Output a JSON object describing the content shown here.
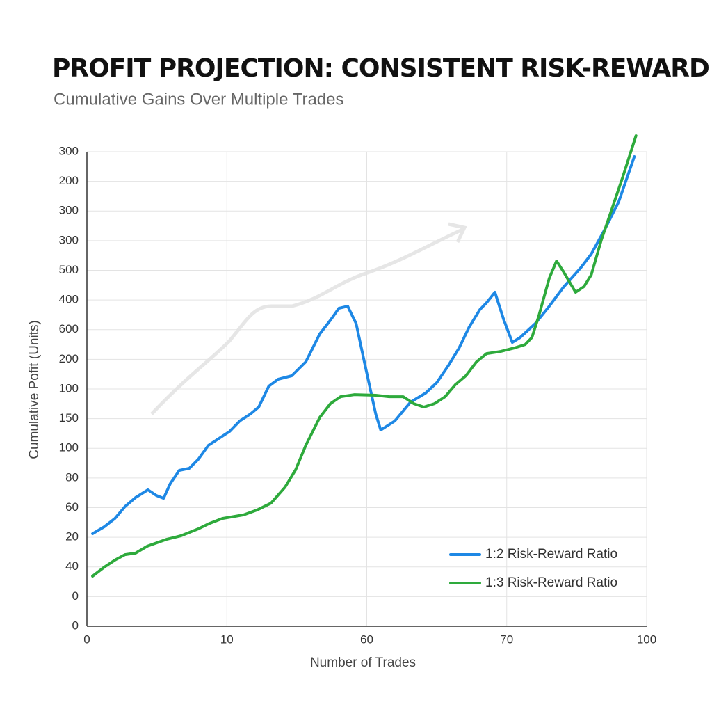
{
  "chart_data": {
    "type": "line",
    "title": "PROFIT PROJECTION: CONSISTENT RISK-REWARD",
    "subtitle": "Cumulative Gains Over Multiple Trades",
    "x_label": "Number of Trades",
    "y_label": "Cumulative Pofit (Units)",
    "xlim": [
      0,
      100
    ],
    "xticks": [
      0,
      {
        "value": 25,
        "label": "10"
      },
      {
        "value": 50,
        "label": "60"
      },
      {
        "value": 75,
        "label": "70"
      },
      100
    ],
    "ylim": [
      0,
      320
    ],
    "yticks": [
      0,
      {
        "value": 20,
        "label": "0"
      },
      40,
      {
        "value": 60,
        "label": "20"
      },
      {
        "value": 80,
        "label": "60"
      },
      {
        "value": 100,
        "label": "80"
      },
      {
        "value": 120,
        "label": "100"
      },
      {
        "value": 140,
        "label": "150"
      },
      {
        "value": 160,
        "label": "100"
      },
      {
        "value": 180,
        "label": "200"
      },
      {
        "value": 200,
        "label": "600"
      },
      {
        "value": 220,
        "label": "400"
      },
      {
        "value": 240,
        "label": "500"
      },
      {
        "value": 260,
        "label": "300"
      },
      {
        "value": 280,
        "label": "300"
      },
      {
        "value": 300,
        "label": "200"
      },
      {
        "value": 320,
        "label": "300"
      }
    ],
    "grid": true,
    "legend": "lower right",
    "series": [
      {
        "name": "1:2 Risk-Reward Ratio",
        "color": "#1e88e5",
        "x": [
          1.0,
          3.1,
          5.0,
          6.8,
          8.7,
          10.9,
          12.4,
          13.7,
          14.9,
          16.5,
          18.3,
          19.9,
          21.7,
          23.6,
          25.5,
          27.3,
          29.2,
          30.7,
          32.5,
          34.2,
          36.6,
          39.1,
          41.6,
          43.5,
          45.0,
          46.6,
          48.1,
          49.7,
          51.6,
          52.5,
          55.0,
          57.8,
          60.5,
          62.5,
          64.6,
          66.5,
          68.3,
          70.2,
          71.4,
          72.9,
          74.5,
          76.0,
          77.4,
          80.1,
          82.6,
          85.1,
          88.2,
          90.1,
          92.5,
          95.0,
          97.8
        ],
        "values": [
          62.4,
          67.1,
          72.7,
          80.7,
          86.8,
          92.0,
          88.2,
          86.3,
          96.2,
          105.1,
          106.5,
          112.6,
          122.0,
          126.7,
          131.4,
          138.4,
          143.1,
          147.8,
          161.9,
          166.6,
          168.9,
          178.3,
          197.1,
          206.4,
          214.4,
          215.8,
          204.1,
          175.9,
          143.1,
          132.3,
          138.4,
          151.1,
          157.2,
          164.2,
          175.9,
          187.7,
          201.8,
          213.5,
          218.2,
          225.2,
          206.4,
          191.4,
          194.7,
          204.1,
          215.8,
          228.5,
          241.6,
          251.0,
          267.4,
          286.2,
          316.7
        ]
      },
      {
        "name": "1:3 Risk-Reward Ratio",
        "color": "#2eaa3c",
        "x": [
          1.0,
          3.1,
          5.0,
          6.8,
          8.7,
          10.8,
          14.3,
          16.8,
          19.9,
          21.7,
          24.2,
          28.0,
          30.4,
          32.9,
          35.4,
          37.3,
          39.1,
          41.6,
          43.5,
          45.3,
          47.8,
          51.6,
          54.0,
          56.5,
          58.4,
          60.2,
          62.1,
          64.0,
          65.8,
          67.7,
          69.6,
          71.4,
          73.9,
          76.4,
          78.3,
          79.5,
          80.7,
          82.6,
          83.9,
          85.1,
          87.3,
          88.8,
          90.1,
          91.9,
          93.8,
          95.7,
          98.1
        ],
        "values": [
          33.8,
          39.9,
          44.6,
          48.3,
          49.3,
          54.0,
          58.7,
          61.0,
          65.7,
          69.0,
          72.7,
          75.1,
          78.4,
          83.0,
          93.8,
          105.6,
          122.0,
          140.8,
          150.1,
          154.8,
          156.2,
          155.8,
          154.8,
          154.8,
          150.1,
          147.8,
          150.1,
          154.8,
          162.8,
          168.9,
          178.3,
          183.9,
          185.3,
          187.7,
          190.0,
          194.7,
          208.8,
          234.6,
          246.3,
          239.3,
          225.2,
          229.0,
          236.9,
          260.4,
          281.5,
          302.6,
          330.8
        ]
      }
    ]
  }
}
